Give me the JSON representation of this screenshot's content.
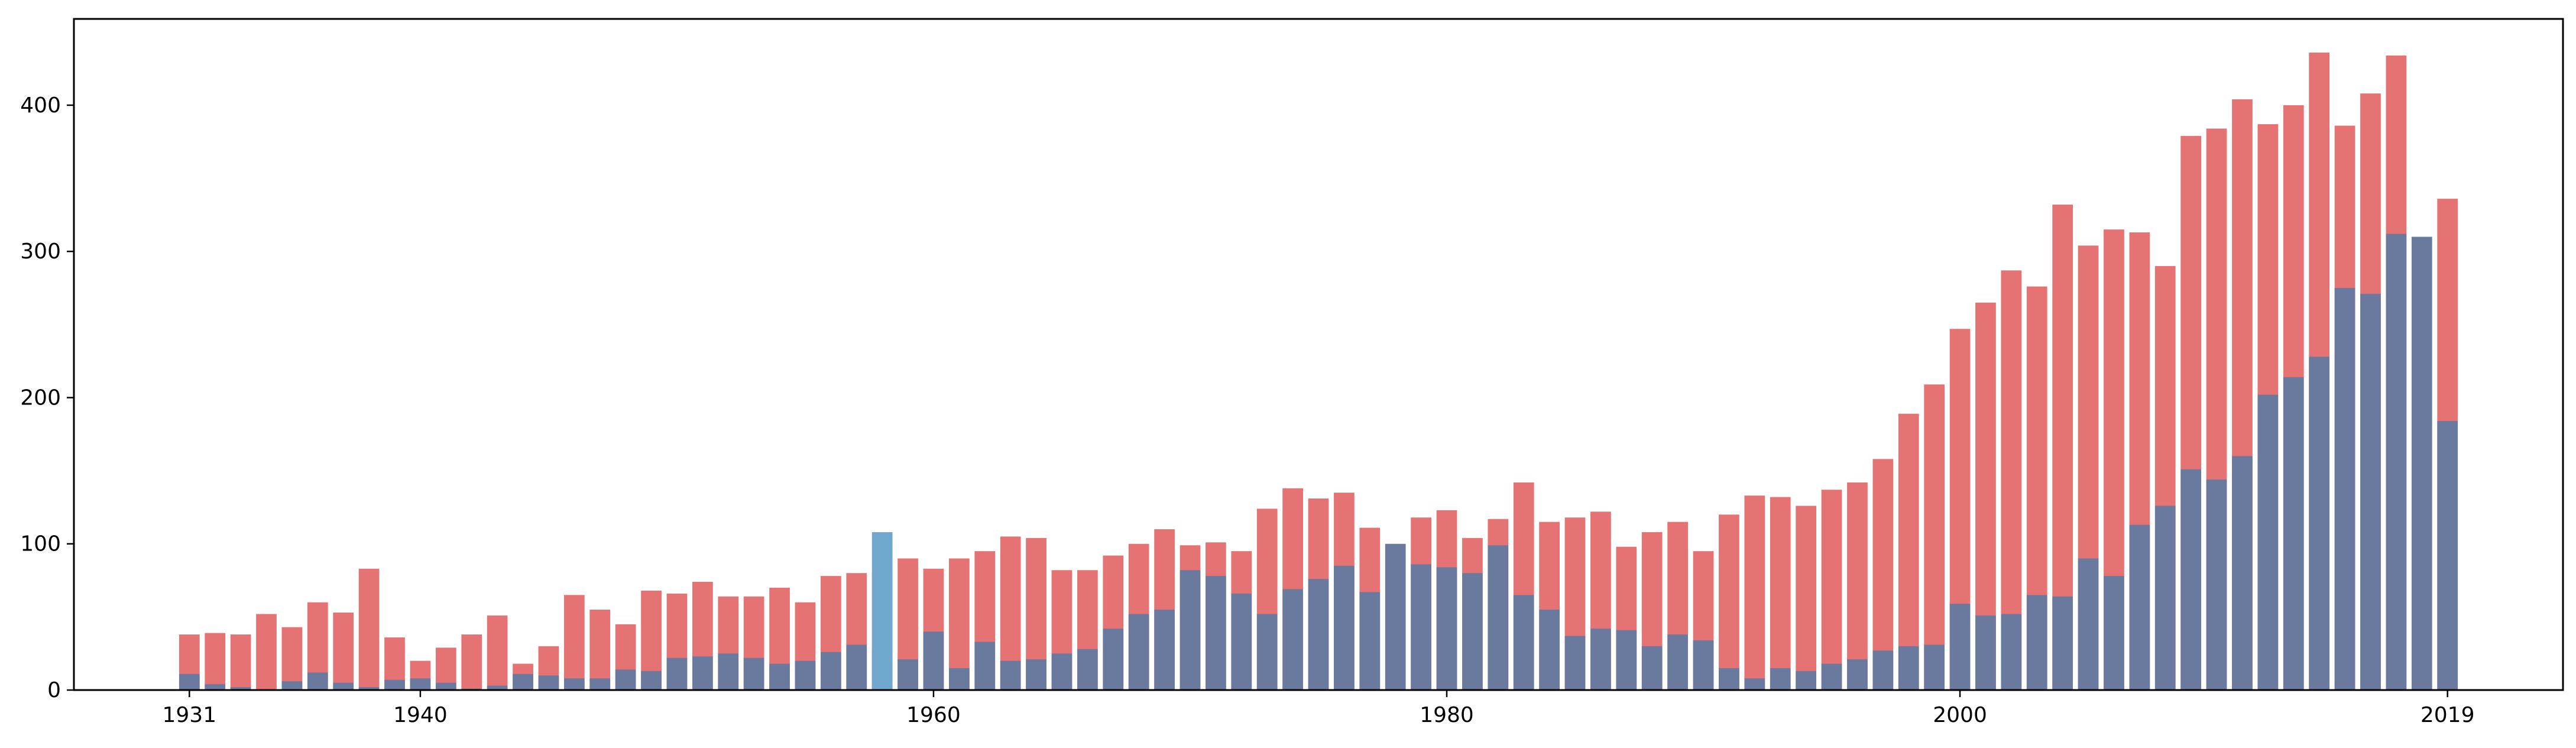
{
  "chart_data": {
    "type": "bar",
    "stacking": "overlay",
    "x": [
      1931,
      1932,
      1933,
      1934,
      1935,
      1936,
      1937,
      1938,
      1939,
      1940,
      1941,
      1942,
      1943,
      1944,
      1945,
      1946,
      1947,
      1948,
      1949,
      1950,
      1951,
      1952,
      1953,
      1954,
      1955,
      1956,
      1957,
      1958,
      1959,
      1960,
      1961,
      1962,
      1963,
      1964,
      1965,
      1966,
      1967,
      1968,
      1969,
      1970,
      1971,
      1972,
      1973,
      1974,
      1975,
      1976,
      1977,
      1978,
      1979,
      1980,
      1981,
      1982,
      1983,
      1984,
      1985,
      1986,
      1987,
      1988,
      1989,
      1990,
      1991,
      1992,
      1993,
      1994,
      1995,
      1996,
      1997,
      1998,
      1999,
      2000,
      2001,
      2002,
      2003,
      2004,
      2005,
      2006,
      2007,
      2008,
      2009,
      2010,
      2011,
      2012,
      2013,
      2014,
      2015,
      2016,
      2017,
      2018,
      2019
    ],
    "series": [
      {
        "color": "#e57373",
        "values": [
          38,
          39,
          38,
          52,
          43,
          60,
          53,
          83,
          36,
          20,
          29,
          38,
          51,
          18,
          30,
          65,
          55,
          45,
          68,
          66,
          74,
          64,
          64,
          70,
          60,
          78,
          80,
          81,
          90,
          83,
          90,
          95,
          105,
          104,
          82,
          82,
          92,
          100,
          110,
          99,
          101,
          95,
          124,
          138,
          131,
          135,
          111,
          null,
          118,
          123,
          104,
          117,
          142,
          115,
          118,
          122,
          98,
          108,
          115,
          95,
          120,
          133,
          132,
          126,
          137,
          142,
          158,
          189,
          209,
          247,
          265,
          287,
          276,
          332,
          304,
          315,
          313,
          290,
          379,
          384,
          404,
          387,
          400,
          436,
          386,
          408,
          434,
          null,
          336
        ]
      },
      {
        "color": "#6a7a9e",
        "values": [
          11,
          4,
          2,
          0,
          6,
          12,
          5,
          2,
          7,
          8,
          5,
          1,
          3,
          11,
          10,
          8,
          8,
          14,
          13,
          22,
          23,
          25,
          22,
          18,
          20,
          26,
          31,
          28,
          21,
          40,
          15,
          33,
          20,
          21,
          25,
          28,
          42,
          52,
          55,
          82,
          78,
          66,
          52,
          69,
          76,
          85,
          67,
          100,
          86,
          84,
          80,
          99,
          65,
          55,
          37,
          42,
          41,
          30,
          38,
          34,
          15,
          8,
          15,
          13,
          18,
          21,
          27,
          30,
          31,
          59,
          51,
          52,
          65,
          64,
          90,
          78,
          113,
          126,
          151,
          144,
          160,
          202,
          214,
          228,
          275,
          271,
          312,
          310,
          184
        ]
      },
      {
        "color": "#6fa8cc",
        "values": [
          null,
          null,
          null,
          null,
          null,
          null,
          null,
          null,
          null,
          null,
          null,
          null,
          null,
          null,
          null,
          null,
          null,
          null,
          null,
          null,
          null,
          null,
          null,
          null,
          null,
          null,
          null,
          108,
          null,
          null,
          null,
          null,
          null,
          null,
          null,
          null,
          null,
          null,
          null,
          null,
          null,
          null,
          null,
          null,
          null,
          null,
          null,
          null,
          null,
          null,
          null,
          null,
          null,
          null,
          null,
          null,
          null,
          null,
          null,
          null,
          null,
          null,
          null,
          null,
          null,
          null,
          null,
          null,
          null,
          null,
          null,
          null,
          null,
          null,
          null,
          null,
          null,
          null,
          null,
          null,
          null,
          null,
          null,
          null,
          null,
          null,
          null,
          null,
          null
        ]
      }
    ],
    "x_ticks": [
      "1931",
      "1940",
      "1960",
      "1980",
      "2000",
      "2019"
    ],
    "x_tick_values": [
      1931,
      1940,
      1960,
      1980,
      2000,
      2019
    ],
    "y_ticks": [
      "0",
      "100",
      "200",
      "300",
      "400"
    ],
    "y_tick_values": [
      0,
      100,
      200,
      300,
      400
    ],
    "xlim": [
      1926.5,
      2023.5
    ],
    "ylim": [
      0,
      459
    ],
    "grid": false,
    "title": "",
    "xlabel": "",
    "ylabel": ""
  }
}
